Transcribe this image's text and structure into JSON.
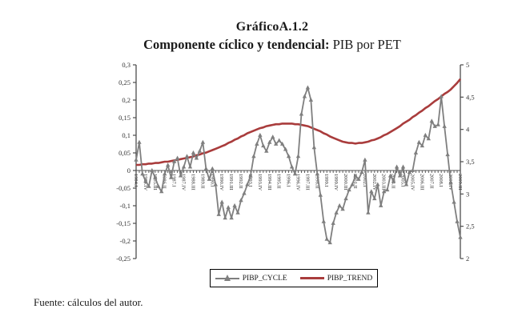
{
  "header": {
    "title": "GráficoA.1.2",
    "subtitle_bold": "Componente cíclico y tendencial:",
    "subtitle_regular": " PIB por PET"
  },
  "source_note": "Fuente: cálculos del autor.",
  "legend": {
    "cycle_label": "PIBP_CYCLE",
    "trend_label": "PIBP_TREND"
  },
  "colors": {
    "cycle": "#7f7f7f",
    "trend": "#a93c3c",
    "axis": "#4d4d4d",
    "tick_text": "#333333"
  },
  "chart_data": {
    "type": "line",
    "title": "Componente cíclico y tendencial: PIB por PET",
    "x_label_every": 3,
    "x_labels": [
      "1984.I",
      "1984.IV",
      "1985.III",
      "1986.II",
      "1987.I",
      "1987.IV",
      "1988.III",
      "1989.II",
      "1990.I",
      "1990.IV",
      "1991.III",
      "1992.II",
      "1993.I",
      "1993.IV",
      "1994.III",
      "1995.II",
      "1996.I",
      "1996.IV",
      "1997.III",
      "1998.II",
      "1999.I",
      "1999.IV",
      "2000.III",
      "2001.II",
      "2002.I",
      "2002.IV",
      "2003.III",
      "2004.II",
      "2005.I",
      "2005.IV",
      "2006.III",
      "2007.II",
      "2008.I",
      "2008.IV",
      "2009.III"
    ],
    "left_axis": {
      "ticks": [
        "0,3",
        "0,25",
        "0,2",
        "0,15",
        "0,1",
        "0,05",
        "0",
        "-0,05",
        "-0,1",
        "-0,15",
        "-0,2",
        "-0,25"
      ],
      "min": -0.25,
      "max": 0.3
    },
    "right_axis": {
      "ticks": [
        "5",
        "4,5",
        "4",
        "3,5",
        "3",
        "2,5",
        "2"
      ],
      "min": 2,
      "max": 5
    },
    "series": [
      {
        "name": "PIBP_CYCLE",
        "axis": "left",
        "marker": "triangle",
        "values": [
          0.03,
          0.08,
          -0.01,
          -0.03,
          -0.045,
          0.0,
          -0.02,
          -0.045,
          -0.06,
          -0.01,
          0.015,
          -0.02,
          0.025,
          0.035,
          -0.015,
          0.01,
          0.04,
          0.01,
          0.05,
          0.035,
          0.055,
          0.08,
          0.005,
          -0.025,
          0.005,
          -0.04,
          -0.125,
          -0.09,
          -0.135,
          -0.105,
          -0.135,
          -0.1,
          -0.12,
          -0.085,
          -0.065,
          -0.04,
          -0.015,
          0.04,
          0.075,
          0.1,
          0.07,
          0.055,
          0.08,
          0.095,
          0.075,
          0.085,
          0.075,
          0.06,
          0.04,
          0.01,
          -0.01,
          0.04,
          0.16,
          0.21,
          0.235,
          0.2,
          0.065,
          -0.01,
          -0.07,
          -0.145,
          -0.195,
          -0.205,
          -0.15,
          -0.12,
          -0.1,
          -0.11,
          -0.08,
          -0.055,
          -0.04,
          -0.015,
          -0.025,
          -0.005,
          0.03,
          -0.12,
          -0.06,
          -0.08,
          -0.04,
          -0.1,
          -0.06,
          -0.055,
          -0.015,
          -0.03,
          0.01,
          -0.015,
          0.01,
          -0.04,
          -0.005,
          0.0,
          0.05,
          0.08,
          0.07,
          0.1,
          0.09,
          0.14,
          0.125,
          0.13,
          0.21,
          0.125,
          0.045,
          -0.035,
          -0.09,
          -0.145,
          -0.19
        ]
      },
      {
        "name": "PIBP_TREND",
        "axis": "right",
        "marker": "none",
        "values": [
          3.45,
          3.45,
          3.46,
          3.46,
          3.47,
          3.47,
          3.48,
          3.48,
          3.49,
          3.5,
          3.5,
          3.51,
          3.52,
          3.53,
          3.54,
          3.55,
          3.56,
          3.57,
          3.58,
          3.6,
          3.61,
          3.63,
          3.64,
          3.66,
          3.68,
          3.7,
          3.72,
          3.74,
          3.76,
          3.79,
          3.81,
          3.84,
          3.86,
          3.89,
          3.91,
          3.94,
          3.96,
          3.98,
          4.0,
          4.02,
          4.03,
          4.05,
          4.06,
          4.07,
          4.08,
          4.08,
          4.09,
          4.09,
          4.09,
          4.09,
          4.08,
          4.08,
          4.07,
          4.06,
          4.05,
          4.03,
          4.01,
          3.99,
          3.97,
          3.94,
          3.92,
          3.89,
          3.87,
          3.85,
          3.83,
          3.81,
          3.8,
          3.79,
          3.79,
          3.78,
          3.79,
          3.79,
          3.8,
          3.81,
          3.83,
          3.84,
          3.86,
          3.88,
          3.91,
          3.93,
          3.96,
          3.99,
          4.02,
          4.05,
          4.09,
          4.12,
          4.15,
          4.19,
          4.22,
          4.26,
          4.29,
          4.33,
          4.36,
          4.4,
          4.44,
          4.47,
          4.51,
          4.55,
          4.58,
          4.62,
          4.67,
          4.72,
          4.78
        ]
      }
    ]
  }
}
